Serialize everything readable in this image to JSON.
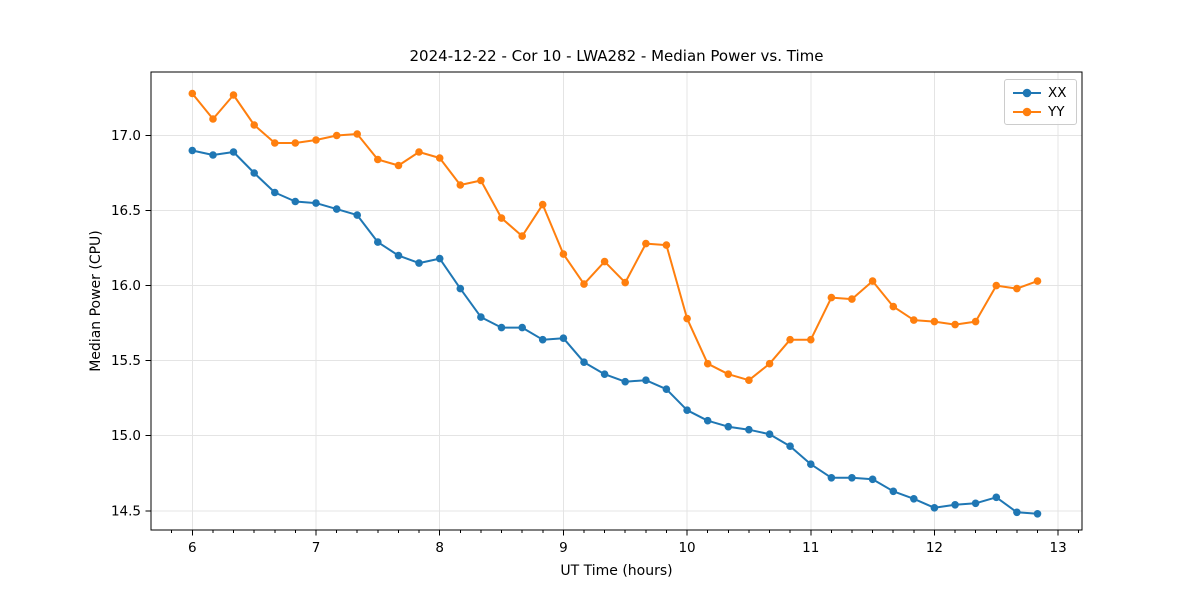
{
  "chart_data": {
    "type": "line",
    "title": "2024-12-22 - Cor 10 - LWA282 - Median Power vs. Time",
    "xlabel": "UT Time (hours)",
    "ylabel": "Median Power (CPU)",
    "xlim": [
      5.666,
      13.193
    ],
    "ylim": [
      14.372,
      17.423
    ],
    "xticks": [
      6,
      7,
      8,
      9,
      10,
      11,
      12,
      13
    ],
    "yticks": [
      14.5,
      15.0,
      15.5,
      16.0,
      16.5,
      17.0
    ],
    "x_minor_tick_step": 0.1667,
    "grid": true,
    "legend_position": "upper right",
    "grid_color": "#e4e4e4",
    "x": [
      6.0,
      6.167,
      6.333,
      6.5,
      6.667,
      6.833,
      7.0,
      7.167,
      7.333,
      7.5,
      7.667,
      7.833,
      8.0,
      8.167,
      8.333,
      8.5,
      8.667,
      8.833,
      9.0,
      9.167,
      9.333,
      9.5,
      9.667,
      9.833,
      10.0,
      10.167,
      10.333,
      10.5,
      10.667,
      10.833,
      11.0,
      11.167,
      11.333,
      11.5,
      11.667,
      11.833,
      12.0,
      12.167,
      12.333,
      12.5,
      12.667,
      12.833
    ],
    "series": [
      {
        "name": "XX",
        "color": "#1f77b4",
        "values": [
          16.9,
          16.87,
          16.89,
          16.75,
          16.62,
          16.56,
          16.55,
          16.51,
          16.47,
          16.29,
          16.2,
          16.15,
          16.18,
          15.98,
          15.79,
          15.72,
          15.72,
          15.64,
          15.65,
          15.49,
          15.41,
          15.36,
          15.37,
          15.31,
          15.17,
          15.1,
          15.06,
          15.04,
          15.01,
          14.93,
          14.81,
          14.72,
          14.72,
          14.71,
          14.63,
          14.58,
          14.52,
          14.54,
          14.55,
          14.59,
          14.49,
          14.48
        ]
      },
      {
        "name": "YY",
        "color": "#ff7f0e",
        "values": [
          17.28,
          17.11,
          17.27,
          17.07,
          16.95,
          16.95,
          16.97,
          17.0,
          17.01,
          16.84,
          16.8,
          16.89,
          16.85,
          16.67,
          16.7,
          16.45,
          16.33,
          16.54,
          16.21,
          16.01,
          16.16,
          16.02,
          16.28,
          16.27,
          15.78,
          15.48,
          15.41,
          15.37,
          15.48,
          15.64,
          15.64,
          15.92,
          15.91,
          16.03,
          15.86,
          15.77,
          15.76,
          15.74,
          15.76,
          16.0,
          15.98,
          16.03
        ]
      }
    ]
  }
}
